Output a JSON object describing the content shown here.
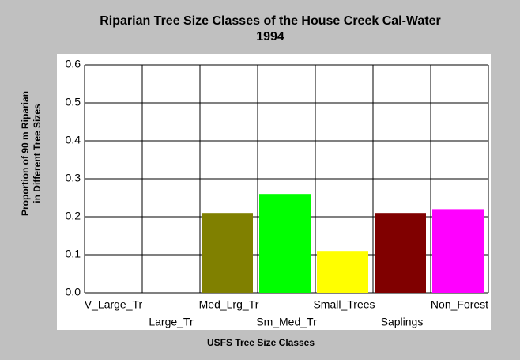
{
  "chart_data": {
    "type": "bar",
    "title": [
      "Riparian Tree Size Classes of the House Creek Cal-Water",
      "1994"
    ],
    "x_label": "USFS Tree Size Classes",
    "y_label": [
      "Proportion of 90 m Riparian",
      "in Different Tree Sizes"
    ],
    "categories": [
      "V_Large_Tr",
      "Large_Tr",
      "Med_Lrg_Tr",
      "Sm_Med_Tr",
      "Small_Trees",
      "Saplings",
      "Non_Forest"
    ],
    "values": [
      0,
      0,
      0.21,
      0.26,
      0.11,
      0.21,
      0.22
    ],
    "colors": [
      null,
      null,
      "#808000",
      "#00ff00",
      "#ffff00",
      "#800000",
      "#ff00ff"
    ],
    "ylim": [
      0,
      0.6
    ],
    "yticks": [
      {
        "value": 0,
        "label": "0.0"
      },
      0.1,
      0.2,
      0.3,
      0.4,
      0.5,
      0.6
    ],
    "grid": true
  }
}
